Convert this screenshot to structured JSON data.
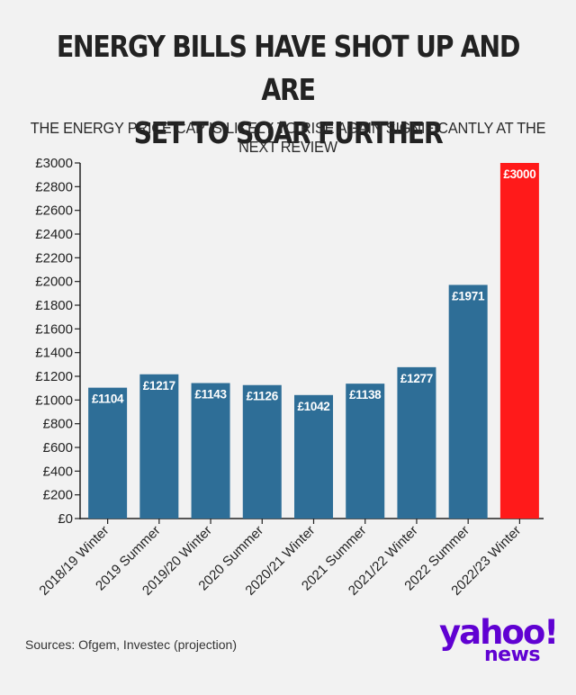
{
  "header": {
    "title_line1": "ENERGY BILLS HAVE SHOT UP AND ARE",
    "title_line2": "SET TO SOAR FURTHER",
    "subtitle": "THE ENERGY PRICE CAP IS LIKELY TO RISE AGAIN SIGNIFICANTLY AT THE NEXT REVIEW"
  },
  "footer": {
    "source": "Sources: Ofgem, Investec (projection)",
    "logo_main": "yahoo!",
    "logo_sub": "news"
  },
  "colors": {
    "bar": "#2e6e97",
    "highlight": "#ff1a1a",
    "axis": "#222222",
    "logo": "#6001d2"
  },
  "chart_data": {
    "type": "bar",
    "title": "ENERGY BILLS HAVE SHOT UP AND ARE SET TO SOAR FURTHER",
    "subtitle": "THE ENERGY PRICE CAP IS LIKELY TO RISE AGAIN SIGNIFICANTLY AT THE NEXT REVIEW",
    "categories": [
      "2018/19 Winter",
      "2019 Summer",
      "2019/20 Winter",
      "2020 Summer",
      "2020/21 Winter",
      "2021 Summer",
      "2021/22 Winter",
      "2022 Summer",
      "2022/23 Winter"
    ],
    "values": [
      1104,
      1217,
      1143,
      1126,
      1042,
      1138,
      1277,
      1971,
      3000
    ],
    "value_labels": [
      "£1104",
      "£1217",
      "£1143",
      "£1126",
      "£1042",
      "£1138",
      "£1277",
      "£1971",
      "£3000"
    ],
    "highlight_index": 8,
    "ylim": [
      0,
      3000
    ],
    "yticks": [
      0,
      200,
      400,
      600,
      800,
      1000,
      1200,
      1400,
      1600,
      1800,
      2000,
      2200,
      2400,
      2600,
      2800,
      3000
    ],
    "ytick_labels": [
      "£0",
      "£200",
      "£400",
      "£600",
      "£800",
      "£1000",
      "£1200",
      "£1400",
      "£1600",
      "£1800",
      "£2000",
      "£2200",
      "£2400",
      "£2600",
      "£2800",
      "£3000"
    ],
    "xlabel": "",
    "ylabel": "",
    "grid": false
  }
}
